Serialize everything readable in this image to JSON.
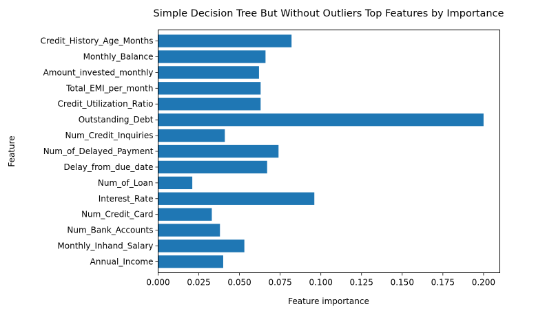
{
  "chart_data": {
    "type": "bar",
    "orientation": "horizontal",
    "title": "Simple Decision Tree But Without Outliers Top Features by Importance",
    "xlabel": "Feature importance",
    "ylabel": "Feature",
    "xlim": [
      0.0,
      0.21
    ],
    "xticks": [
      0.0,
      0.025,
      0.05,
      0.075,
      0.1,
      0.125,
      0.15,
      0.175,
      0.2
    ],
    "xtick_labels": [
      "0.000",
      "0.025",
      "0.050",
      "0.075",
      "0.100",
      "0.125",
      "0.150",
      "0.175",
      "0.200"
    ],
    "categories": [
      "Annual_Income",
      "Monthly_Inhand_Salary",
      "Num_Bank_Accounts",
      "Num_Credit_Card",
      "Interest_Rate",
      "Num_of_Loan",
      "Delay_from_due_date",
      "Num_of_Delayed_Payment",
      "Num_Credit_Inquiries",
      "Outstanding_Debt",
      "Credit_Utilization_Ratio",
      "Total_EMI_per_month",
      "Amount_invested_monthly",
      "Monthly_Balance",
      "Credit_History_Age_Months"
    ],
    "values": [
      0.04,
      0.053,
      0.038,
      0.033,
      0.096,
      0.021,
      0.067,
      0.074,
      0.041,
      0.2,
      0.063,
      0.063,
      0.062,
      0.066,
      0.082
    ],
    "bar_color": "#1f77b4",
    "grid": false,
    "legend": "none"
  }
}
